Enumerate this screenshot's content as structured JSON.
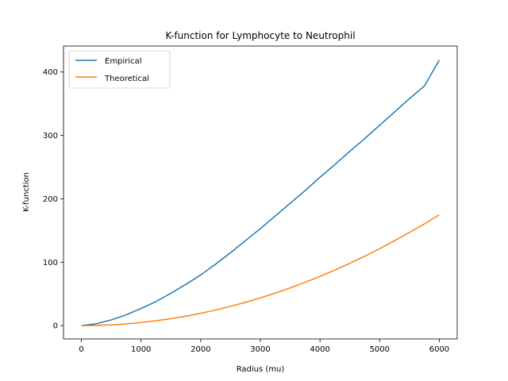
{
  "chart_data": {
    "type": "line",
    "title": "K-function for Lymphocyte to Neutrophil",
    "xlabel": "Radius (mu)",
    "ylabel": "K-function",
    "xlim": [
      -300,
      6300
    ],
    "ylim": [
      -21,
      441
    ],
    "xticks": [
      0,
      1000,
      2000,
      3000,
      4000,
      5000,
      6000
    ],
    "yticks": [
      0,
      100,
      200,
      300,
      400
    ],
    "grid": false,
    "legend_position": "top-left",
    "series": [
      {
        "name": "Empirical",
        "color": "#1f77b4",
        "x": [
          0,
          250,
          500,
          750,
          1000,
          1250,
          1500,
          1750,
          2000,
          2250,
          2500,
          2750,
          3000,
          3250,
          3500,
          3750,
          4000,
          4250,
          4500,
          4750,
          5000,
          5250,
          5500,
          5750,
          6000
        ],
        "y": [
          0,
          3,
          9,
          17,
          27,
          38,
          51,
          65,
          80,
          97,
          115,
          134,
          153,
          173,
          193,
          213,
          234,
          254,
          275,
          295,
          316,
          337,
          358,
          378,
          419
        ]
      },
      {
        "name": "Theoretical",
        "color": "#ff7f0e",
        "x": [
          0,
          250,
          500,
          750,
          1000,
          1250,
          1500,
          1750,
          2000,
          2250,
          2500,
          2750,
          3000,
          3250,
          3500,
          3750,
          4000,
          4250,
          4500,
          4750,
          5000,
          5250,
          5500,
          5750,
          6000
        ],
        "y": [
          0,
          0.3,
          1.2,
          2.7,
          4.9,
          7.6,
          10.9,
          14.9,
          19.4,
          24.6,
          30.4,
          36.8,
          43.7,
          51.3,
          59.5,
          68.3,
          77.7,
          87.7,
          98.4,
          109.6,
          121.4,
          133.9,
          146.9,
          160.5,
          174.8
        ]
      }
    ]
  }
}
